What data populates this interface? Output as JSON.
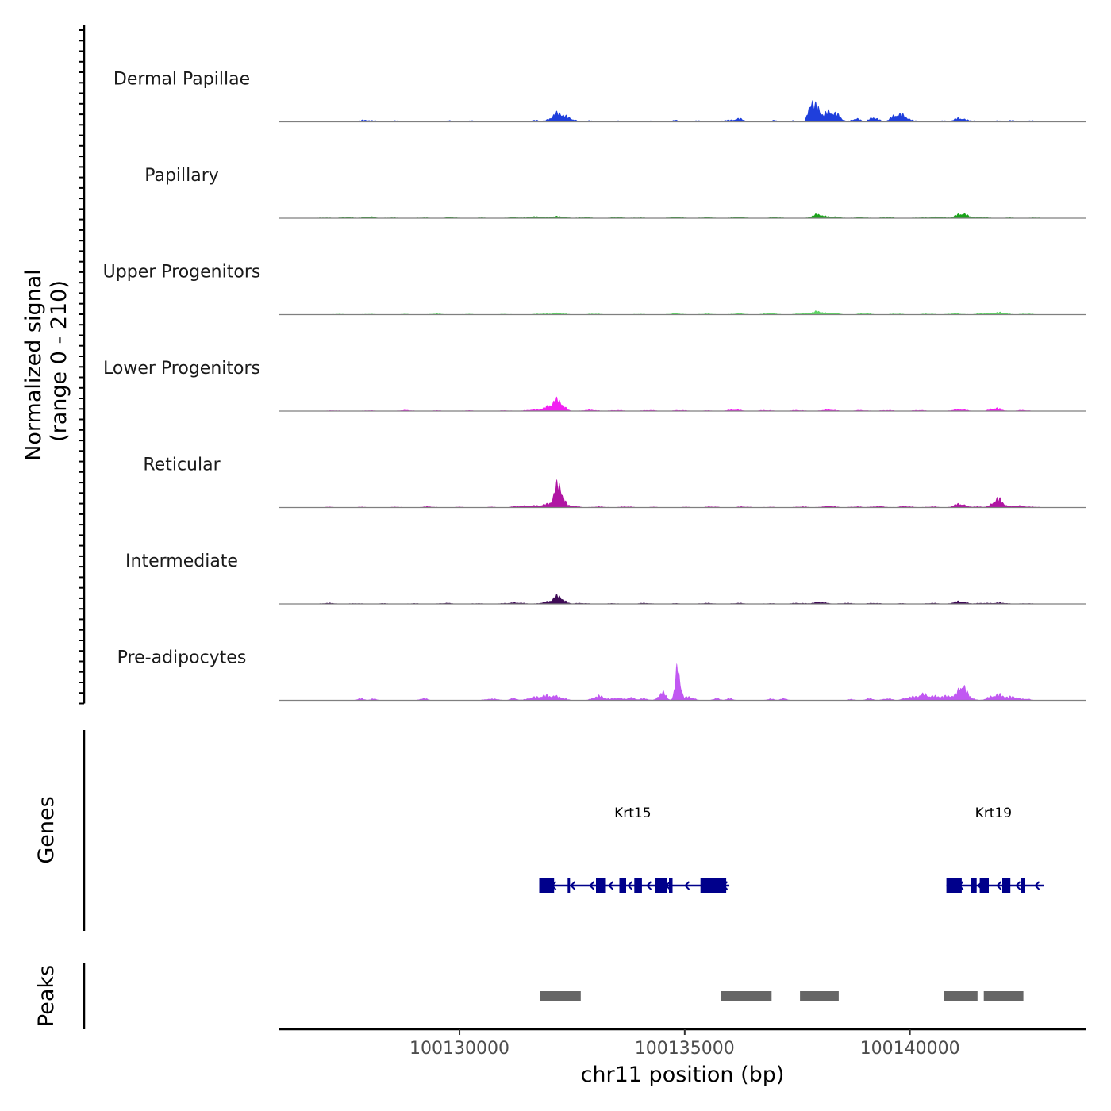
{
  "chart_data": {
    "type": "area",
    "chromosome": "chr11",
    "xlabel": "chr11 position (bp)",
    "ylabel_line1": "Normalized signal",
    "ylabel_line2": "(range 0 - 210)",
    "y_range": [
      0,
      210
    ],
    "x_range": [
      100126000,
      100143900
    ],
    "x_ticks": [
      {
        "value": 100130000,
        "label": "100130000"
      },
      {
        "value": 100135000,
        "label": "100135000"
      },
      {
        "value": 100140000,
        "label": "100140000"
      }
    ],
    "series": [
      {
        "name": "Dermal Papillae",
        "color": "#1f3fdc",
        "peaks": [
          [
            100127900,
            6,
            120
          ],
          [
            100128200,
            4,
            100
          ],
          [
            100128600,
            4,
            100
          ],
          [
            100128900,
            3,
            80
          ],
          [
            100129800,
            4,
            120
          ],
          [
            100130300,
            4,
            120
          ],
          [
            100130800,
            3,
            100
          ],
          [
            100131300,
            4,
            100
          ],
          [
            100131700,
            5,
            100
          ],
          [
            100132200,
            28,
            150
          ],
          [
            100132500,
            6,
            100
          ],
          [
            100132900,
            4,
            100
          ],
          [
            100133500,
            4,
            100
          ],
          [
            100134200,
            4,
            100
          ],
          [
            100134800,
            5,
            100
          ],
          [
            100135300,
            4,
            100
          ],
          [
            100135900,
            5,
            100
          ],
          [
            100136200,
            10,
            120
          ],
          [
            100136600,
            4,
            100
          ],
          [
            100137000,
            5,
            100
          ],
          [
            100137400,
            4,
            100
          ],
          [
            100137800,
            62,
            60
          ],
          [
            100137950,
            44,
            70
          ],
          [
            100138200,
            32,
            100
          ],
          [
            100138400,
            18,
            90
          ],
          [
            100138800,
            10,
            100
          ],
          [
            100139200,
            14,
            100
          ],
          [
            100139700,
            22,
            120
          ],
          [
            100139900,
            12,
            100
          ],
          [
            100140200,
            4,
            100
          ],
          [
            100140700,
            4,
            100
          ],
          [
            100141100,
            12,
            120
          ],
          [
            100141400,
            4,
            100
          ],
          [
            100141900,
            4,
            120
          ],
          [
            100142300,
            5,
            120
          ],
          [
            100142700,
            4,
            100
          ]
        ]
      },
      {
        "name": "Papillary",
        "color": "#1aa31a",
        "peaks": [
          [
            100127000,
            2,
            150
          ],
          [
            100127500,
            3,
            150
          ],
          [
            100128000,
            5,
            120
          ],
          [
            100128500,
            2,
            150
          ],
          [
            100129200,
            2,
            150
          ],
          [
            100129800,
            3,
            150
          ],
          [
            100130500,
            2,
            150
          ],
          [
            100131200,
            3,
            150
          ],
          [
            100131700,
            5,
            150
          ],
          [
            100132200,
            6,
            150
          ],
          [
            100132800,
            3,
            150
          ],
          [
            100133500,
            3,
            150
          ],
          [
            100134000,
            2,
            150
          ],
          [
            100134800,
            4,
            150
          ],
          [
            100135500,
            3,
            150
          ],
          [
            100136200,
            4,
            150
          ],
          [
            100137000,
            3,
            150
          ],
          [
            100137950,
            12,
            120
          ],
          [
            100138300,
            5,
            150
          ],
          [
            100138900,
            3,
            150
          ],
          [
            100139500,
            3,
            150
          ],
          [
            100140200,
            2,
            150
          ],
          [
            100140600,
            4,
            150
          ],
          [
            100141150,
            15,
            130
          ],
          [
            100141600,
            3,
            150
          ],
          [
            100142200,
            2,
            150
          ],
          [
            100142800,
            2,
            150
          ]
        ]
      },
      {
        "name": "Upper Progenitors",
        "color": "#5fd665",
        "peaks": [
          [
            100127300,
            2,
            150
          ],
          [
            100128000,
            2,
            150
          ],
          [
            100128800,
            2,
            150
          ],
          [
            100129500,
            3,
            150
          ],
          [
            100130200,
            2,
            150
          ],
          [
            100131000,
            2,
            150
          ],
          [
            100131800,
            3,
            150
          ],
          [
            100132200,
            5,
            150
          ],
          [
            100133000,
            3,
            150
          ],
          [
            100134000,
            2,
            150
          ],
          [
            100134800,
            4,
            150
          ],
          [
            100135500,
            3,
            150
          ],
          [
            100136200,
            4,
            150
          ],
          [
            100136900,
            5,
            150
          ],
          [
            100137600,
            4,
            150
          ],
          [
            100137950,
            10,
            120
          ],
          [
            100138300,
            5,
            150
          ],
          [
            100139000,
            4,
            150
          ],
          [
            100139700,
            3,
            150
          ],
          [
            100140400,
            3,
            150
          ],
          [
            100141000,
            4,
            150
          ],
          [
            100141600,
            4,
            150
          ],
          [
            100142000,
            7,
            150
          ],
          [
            100142600,
            3,
            150
          ]
        ]
      },
      {
        "name": "Lower Progenitors",
        "color": "#f21ff2",
        "peaks": [
          [
            100127200,
            2,
            150
          ],
          [
            100128000,
            2,
            150
          ],
          [
            100128800,
            3,
            150
          ],
          [
            100129500,
            2,
            150
          ],
          [
            100130200,
            2,
            150
          ],
          [
            100131000,
            2,
            150
          ],
          [
            100131600,
            4,
            150
          ],
          [
            100132000,
            14,
            140
          ],
          [
            100132200,
            30,
            110
          ],
          [
            100132900,
            4,
            150
          ],
          [
            100133500,
            3,
            150
          ],
          [
            100134200,
            3,
            150
          ],
          [
            100134900,
            3,
            150
          ],
          [
            100135500,
            2,
            150
          ],
          [
            100136100,
            5,
            150
          ],
          [
            100136800,
            3,
            150
          ],
          [
            100137500,
            3,
            150
          ],
          [
            100138200,
            5,
            150
          ],
          [
            100138900,
            3,
            150
          ],
          [
            100139500,
            3,
            150
          ],
          [
            100140200,
            3,
            150
          ],
          [
            100141100,
            6,
            150
          ],
          [
            100141900,
            10,
            120
          ],
          [
            100142500,
            3,
            150
          ]
        ]
      },
      {
        "name": "Reticular",
        "color": "#b015a3",
        "peaks": [
          [
            100127100,
            2,
            150
          ],
          [
            100127800,
            2,
            150
          ],
          [
            100128600,
            2,
            150
          ],
          [
            100129300,
            3,
            150
          ],
          [
            100130000,
            2,
            150
          ],
          [
            100130700,
            2,
            150
          ],
          [
            100131300,
            4,
            150
          ],
          [
            100131600,
            5,
            150
          ],
          [
            100131950,
            10,
            140
          ],
          [
            100132200,
            72,
            90
          ],
          [
            100132500,
            5,
            150
          ],
          [
            100133100,
            3,
            150
          ],
          [
            100133700,
            3,
            150
          ],
          [
            100134300,
            2,
            150
          ],
          [
            100135000,
            2,
            150
          ],
          [
            100135600,
            3,
            150
          ],
          [
            100136300,
            3,
            150
          ],
          [
            100136900,
            2,
            150
          ],
          [
            100137600,
            3,
            150
          ],
          [
            100138200,
            5,
            150
          ],
          [
            100138800,
            3,
            150
          ],
          [
            100139300,
            4,
            150
          ],
          [
            100139900,
            4,
            150
          ],
          [
            100140500,
            3,
            150
          ],
          [
            100141100,
            12,
            120
          ],
          [
            100141500,
            3,
            150
          ],
          [
            100141950,
            28,
            110
          ],
          [
            100142400,
            6,
            150
          ],
          [
            100142800,
            2,
            150
          ]
        ]
      },
      {
        "name": "Intermediate",
        "color": "#3f0b57",
        "peaks": [
          [
            100127100,
            3,
            150
          ],
          [
            100127700,
            2,
            150
          ],
          [
            100128300,
            2,
            150
          ],
          [
            100129000,
            2,
            150
          ],
          [
            100129700,
            3,
            150
          ],
          [
            100130400,
            2,
            150
          ],
          [
            100131000,
            2,
            150
          ],
          [
            100131300,
            4,
            150
          ],
          [
            100131950,
            6,
            150
          ],
          [
            100132200,
            24,
            110
          ],
          [
            100132700,
            3,
            150
          ],
          [
            100133400,
            2,
            150
          ],
          [
            100134100,
            3,
            150
          ],
          [
            100134800,
            2,
            150
          ],
          [
            100135500,
            3,
            150
          ],
          [
            100136200,
            3,
            150
          ],
          [
            100136900,
            2,
            150
          ],
          [
            100137500,
            3,
            150
          ],
          [
            100138000,
            6,
            150
          ],
          [
            100138600,
            3,
            150
          ],
          [
            100139200,
            3,
            150
          ],
          [
            100139800,
            2,
            150
          ],
          [
            100140500,
            3,
            150
          ],
          [
            100141100,
            9,
            130
          ],
          [
            100141600,
            3,
            150
          ],
          [
            100142000,
            4,
            150
          ],
          [
            100142600,
            2,
            150
          ]
        ]
      },
      {
        "name": "Pre-adipocytes",
        "color": "#c158f2",
        "peaks": [
          [
            100127800,
            6,
            80
          ],
          [
            100128100,
            5,
            80
          ],
          [
            100129200,
            7,
            80
          ],
          [
            100130600,
            4,
            80
          ],
          [
            100130800,
            5,
            80
          ],
          [
            100131200,
            6,
            90
          ],
          [
            100131600,
            7,
            120
          ],
          [
            100131900,
            14,
            150
          ],
          [
            100132200,
            10,
            140
          ],
          [
            100133100,
            14,
            130
          ],
          [
            100133500,
            8,
            100
          ],
          [
            100133800,
            8,
            100
          ],
          [
            100134100,
            6,
            90
          ],
          [
            100134500,
            26,
            80
          ],
          [
            100134850,
            108,
            55
          ],
          [
            100135100,
            12,
            100
          ],
          [
            100135700,
            6,
            80
          ],
          [
            100136000,
            6,
            80
          ],
          [
            100136900,
            5,
            80
          ],
          [
            100137200,
            6,
            80
          ],
          [
            100138700,
            4,
            80
          ],
          [
            100139100,
            6,
            90
          ],
          [
            100139500,
            6,
            100
          ],
          [
            100140000,
            10,
            130
          ],
          [
            100140300,
            18,
            120
          ],
          [
            100140600,
            12,
            130
          ],
          [
            100140900,
            14,
            120
          ],
          [
            100141150,
            44,
            80
          ],
          [
            100141300,
            12,
            100
          ],
          [
            100141800,
            10,
            110
          ],
          [
            100142000,
            16,
            110
          ],
          [
            100142300,
            12,
            110
          ],
          [
            100142600,
            5,
            80
          ]
        ]
      }
    ],
    "genes_track": {
      "label": "Genes",
      "color": "#00008b",
      "genes": [
        {
          "name": "Krt15",
          "start": 100131770,
          "end": 100135920,
          "strand": "-",
          "exons": [
            [
              100131770,
              100132100
            ],
            [
              100132400,
              100132440
            ],
            [
              100133030,
              100133250
            ],
            [
              100133550,
              100133700
            ],
            [
              100133880,
              100134050
            ],
            [
              100134350,
              100134600
            ],
            [
              100134650,
              100134730
            ],
            [
              100135350,
              100135920
            ]
          ]
        },
        {
          "name": "Krt19",
          "start": 100140810,
          "end": 100142900,
          "strand": "-",
          "exons": [
            [
              100140810,
              100141150
            ],
            [
              100141350,
              100141480
            ],
            [
              100141550,
              100141750
            ],
            [
              100142050,
              100142230
            ],
            [
              100142470,
              100142560
            ]
          ]
        }
      ]
    },
    "peaks_track": {
      "label": "Peaks",
      "color": "#666666",
      "regions": [
        [
          100131780,
          100132690
        ],
        [
          100135800,
          100136930
        ],
        [
          100137560,
          100138420
        ],
        [
          100140750,
          100141500
        ],
        [
          100141640,
          100142520
        ]
      ]
    }
  }
}
